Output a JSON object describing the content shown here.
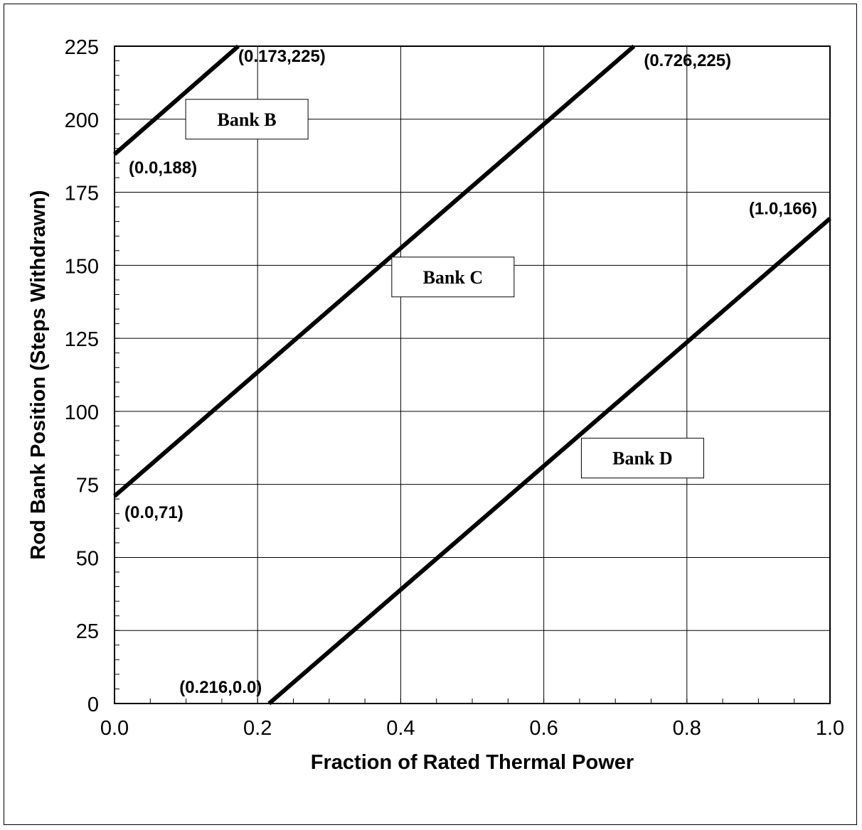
{
  "chart_data": {
    "type": "line",
    "xlabel": "Fraction of Rated Thermal Power",
    "ylabel": "Rod Bank Position (Steps Withdrawn)",
    "xlim": [
      0.0,
      1.0
    ],
    "ylim": [
      0,
      225
    ],
    "xticks": [
      "0.0",
      "0.2",
      "0.4",
      "0.6",
      "0.8",
      "1.0"
    ],
    "yticks": [
      "0",
      "25",
      "50",
      "75",
      "100",
      "125",
      "150",
      "175",
      "200",
      "225"
    ],
    "grid": true,
    "series": [
      {
        "name": "Bank B",
        "x": [
          0.0,
          0.173
        ],
        "y": [
          188,
          225
        ]
      },
      {
        "name": "Bank C",
        "x": [
          0.0,
          0.726
        ],
        "y": [
          71,
          225
        ]
      },
      {
        "name": "Bank D",
        "x": [
          0.216,
          1.0
        ],
        "y": [
          0,
          166
        ]
      }
    ],
    "annotations": [
      {
        "text": "(0.173,225)",
        "x": 0.173,
        "y": 225
      },
      {
        "text": "(0.0,188)",
        "x": 0.0,
        "y": 188
      },
      {
        "text": "(0.726,225)",
        "x": 0.726,
        "y": 225
      },
      {
        "text": "(0.0,71)",
        "x": 0.0,
        "y": 71
      },
      {
        "text": "(1.0,166)",
        "x": 1.0,
        "y": 166
      },
      {
        "text": "(0.216,0.0)",
        "x": 0.216,
        "y": 0
      }
    ]
  }
}
